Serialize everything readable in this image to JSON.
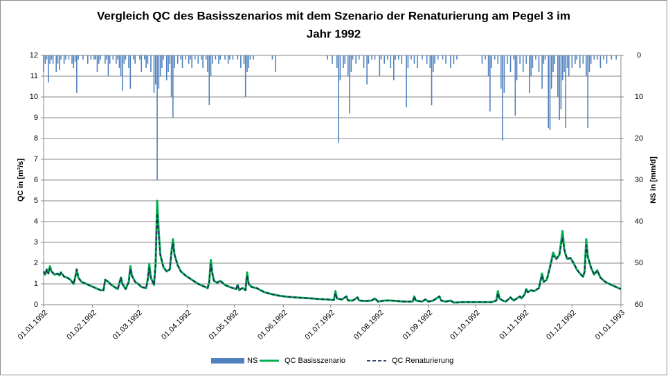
{
  "chart_data": {
    "type": "line",
    "title": [
      "Vergleich QC des Basisszenarios  mit dem Szenario der Renaturierung am Pegel 3 im",
      "Jahr 1992"
    ],
    "y_label": "QC in  [m³/s]",
    "y2_label": "NS in  [mm/d]",
    "xlim": [
      0,
      366
    ],
    "xticks": [
      {
        "value": 0,
        "label": "01.01.1992"
      },
      {
        "value": 31,
        "label": "01.02.1992"
      },
      {
        "value": 60,
        "label": "01.03.1992"
      },
      {
        "value": 91,
        "label": "01.04.1992"
      },
      {
        "value": 121,
        "label": "01.05.1992"
      },
      {
        "value": 152,
        "label": "01.06.1992"
      },
      {
        "value": 182,
        "label": "01.07.1992"
      },
      {
        "value": 213,
        "label": "01.08.1992"
      },
      {
        "value": 244,
        "label": "01.09.1992"
      },
      {
        "value": 274,
        "label": "01.10.1992"
      },
      {
        "value": 305,
        "label": "01.11.1992"
      },
      {
        "value": 335,
        "label": "01.12.1992"
      },
      {
        "value": 366,
        "label": "01.01.1993"
      }
    ],
    "ylim": [
      0,
      12
    ],
    "yticks": [
      0,
      1,
      2,
      3,
      4,
      5,
      6,
      7,
      8,
      9,
      10,
      11,
      12
    ],
    "y2lim": [
      60,
      0
    ],
    "y2ticks": [
      0,
      10,
      20,
      30,
      40,
      50,
      60
    ],
    "grid": true,
    "legend": "bottom",
    "x": [
      0,
      1,
      2,
      3,
      4,
      5,
      7,
      9,
      10,
      11,
      13,
      15,
      17,
      18,
      19,
      20,
      21,
      22,
      24,
      27,
      30,
      33,
      36,
      38,
      39,
      41,
      43,
      45,
      47,
      49,
      50,
      52,
      54,
      55,
      56,
      58,
      60,
      62,
      65,
      66,
      67,
      68,
      70,
      71,
      72,
      73,
      74,
      76,
      78,
      80,
      81,
      82,
      83,
      85,
      87,
      90,
      93,
      96,
      98,
      101,
      104,
      105,
      106,
      107,
      108,
      110,
      112,
      115,
      118,
      120,
      122,
      123,
      124,
      126,
      128,
      129,
      130,
      132,
      135,
      140,
      145,
      150,
      155,
      160,
      165,
      170,
      175,
      180,
      184,
      185,
      186,
      189,
      192,
      193,
      196,
      199,
      200,
      204,
      208,
      210,
      212,
      216,
      220,
      224,
      228,
      234,
      235,
      236,
      240,
      242,
      244,
      247,
      250,
      251,
      252,
      255,
      258,
      260,
      266,
      275,
      284,
      287,
      288,
      289,
      291,
      293,
      296,
      298,
      300,
      302,
      303,
      305,
      306,
      307,
      309,
      311,
      314,
      316,
      317,
      319,
      321,
      323,
      325,
      327,
      329,
      330,
      331,
      332,
      334,
      336,
      338,
      340,
      342,
      343,
      344,
      345,
      347,
      349,
      351,
      353,
      356,
      360,
      366
    ],
    "series": [
      {
        "name": "NS",
        "type": "bar",
        "axis": "y2",
        "color": "#4f81bd",
        "x": [
          0,
          1,
          2,
          3,
          4,
          5,
          6,
          8,
          9,
          10,
          11,
          13,
          14,
          16,
          18,
          19,
          20,
          21,
          22,
          25,
          28,
          30,
          32,
          33,
          34,
          35,
          36,
          39,
          40,
          41,
          42,
          44,
          46,
          47,
          48,
          49,
          50,
          51,
          52,
          54,
          55,
          57,
          58,
          61,
          62,
          64,
          65,
          66,
          68,
          70,
          71,
          72,
          73,
          74,
          75,
          76,
          78,
          79,
          80,
          81,
          82,
          83,
          85,
          87,
          88,
          90,
          92,
          93,
          94,
          96,
          98,
          100,
          101,
          103,
          104,
          105,
          106,
          107,
          109,
          111,
          112,
          115,
          117,
          118,
          120,
          123,
          125,
          127,
          128,
          129,
          130,
          131,
          133,
          145,
          147,
          180,
          183,
          186,
          187,
          188,
          190,
          191,
          193,
          194,
          195,
          196,
          198,
          200,
          203,
          205,
          206,
          208,
          210,
          213,
          214,
          216,
          218,
          220,
          222,
          223,
          225,
          227,
          230,
          231,
          233,
          235,
          237,
          240,
          243,
          245,
          246,
          247,
          248,
          250,
          253,
          255,
          258,
          260,
          262,
          278,
          280,
          282,
          283,
          284,
          286,
          288,
          290,
          291,
          292,
          294,
          296,
          298,
          299,
          300,
          302,
          304,
          306,
          308,
          309,
          310,
          312,
          314,
          316,
          317,
          318,
          320,
          321,
          322,
          323,
          324,
          326,
          327,
          328,
          329,
          330,
          331,
          332,
          333,
          335,
          337,
          338,
          340,
          342,
          344,
          345,
          346,
          347,
          349,
          351,
          353,
          355,
          357,
          360,
          363
        ],
        "values": [
          4,
          2,
          1,
          6.5,
          2,
          1,
          2,
          4,
          2,
          3.5,
          1,
          2,
          1,
          1,
          2,
          3,
          1.5,
          9,
          1,
          1,
          2,
          1,
          1,
          1,
          4,
          2,
          1,
          2,
          1,
          5,
          2,
          1,
          2,
          1,
          3,
          5,
          8.5,
          2,
          1,
          3,
          8,
          1,
          2,
          1,
          4,
          1,
          3,
          2,
          4,
          9,
          7,
          30,
          8,
          5,
          3,
          1,
          6,
          4,
          2,
          10,
          15,
          3,
          2,
          1,
          3,
          1,
          2,
          1,
          3,
          1,
          2,
          1,
          3,
          1,
          4,
          12,
          5,
          2,
          1,
          2,
          1,
          1,
          2,
          1,
          1,
          1,
          3,
          2,
          10,
          4,
          3,
          1,
          1,
          1,
          4,
          1,
          2,
          3,
          21,
          6,
          3,
          2,
          5,
          14,
          4,
          1,
          2,
          1,
          3,
          7,
          2,
          1,
          1,
          5,
          1,
          2,
          1,
          3,
          6,
          1,
          1,
          2,
          12.5,
          3,
          1,
          2,
          3,
          1,
          2,
          3,
          12,
          4,
          2,
          1,
          1,
          2,
          3,
          2,
          1,
          2,
          1,
          5,
          13.5,
          3,
          1,
          2,
          8,
          20.5,
          9,
          2,
          4,
          1,
          14.5,
          6,
          2,
          4,
          2,
          9,
          5,
          3,
          1,
          4,
          8,
          2,
          1,
          17.5,
          18,
          8,
          4,
          2,
          10,
          15.5,
          13,
          6,
          4,
          17.5,
          3,
          5,
          3,
          2,
          1,
          3,
          2,
          5,
          17.5,
          4,
          2,
          1,
          1,
          3,
          1,
          2,
          1,
          1
        ]
      },
      {
        "name": "QC Basisszenario",
        "color": "#00b050",
        "values": [
          1.6,
          1.45,
          1.7,
          1.5,
          1.85,
          1.6,
          1.45,
          1.5,
          1.4,
          1.55,
          1.35,
          1.3,
          1.2,
          1.1,
          1.0,
          1.3,
          1.7,
          1.3,
          1.1,
          1.0,
          0.9,
          0.8,
          0.7,
          0.7,
          1.2,
          1.1,
          0.95,
          0.85,
          0.75,
          1.3,
          1.0,
          0.75,
          1.1,
          1.85,
          1.4,
          1.1,
          1.0,
          0.85,
          0.8,
          1.2,
          1.95,
          1.3,
          0.95,
          2.0,
          5.0,
          3.5,
          2.4,
          1.8,
          1.6,
          1.7,
          2.5,
          3.15,
          2.4,
          1.9,
          1.6,
          1.4,
          1.25,
          1.1,
          1.0,
          0.9,
          0.8,
          1.1,
          2.15,
          1.5,
          1.15,
          1.05,
          1.15,
          0.95,
          0.85,
          0.8,
          0.75,
          0.95,
          0.7,
          0.8,
          0.7,
          1.55,
          1.0,
          0.85,
          0.8,
          0.6,
          0.5,
          0.42,
          0.38,
          0.35,
          0.32,
          0.3,
          0.27,
          0.25,
          0.22,
          0.65,
          0.3,
          0.25,
          0.4,
          0.2,
          0.2,
          0.35,
          0.2,
          0.18,
          0.2,
          0.3,
          0.15,
          0.2,
          0.2,
          0.18,
          0.15,
          0.15,
          0.4,
          0.2,
          0.15,
          0.25,
          0.15,
          0.2,
          0.35,
          0.4,
          0.2,
          0.15,
          0.2,
          0.1,
          0.12,
          0.12,
          0.12,
          0.2,
          0.65,
          0.3,
          0.2,
          0.15,
          0.35,
          0.2,
          0.3,
          0.4,
          0.3,
          0.5,
          0.75,
          0.6,
          0.7,
          0.65,
          0.8,
          1.5,
          1.1,
          1.2,
          1.8,
          2.5,
          2.2,
          2.4,
          3.55,
          2.7,
          2.4,
          2.2,
          2.25,
          2.0,
          1.7,
          1.5,
          1.35,
          1.6,
          3.15,
          2.3,
          1.8,
          1.45,
          1.65,
          1.3,
          1.1,
          0.95,
          0.75
        ]
      },
      {
        "name": "QC Renaturierung",
        "color": "#1f2a5c",
        "dashed": true,
        "values": [
          1.6,
          1.45,
          1.7,
          1.5,
          1.75,
          1.6,
          1.45,
          1.5,
          1.4,
          1.55,
          1.35,
          1.3,
          1.2,
          1.1,
          1.0,
          1.3,
          1.7,
          1.3,
          1.1,
          1.0,
          0.9,
          0.8,
          0.7,
          0.7,
          1.2,
          1.1,
          0.95,
          0.85,
          0.75,
          1.3,
          1.0,
          0.75,
          1.1,
          1.7,
          1.4,
          1.1,
          1.0,
          0.85,
          0.8,
          1.2,
          1.8,
          1.3,
          0.95,
          1.9,
          4.4,
          3.3,
          2.4,
          1.8,
          1.6,
          1.7,
          2.5,
          2.95,
          2.4,
          1.9,
          1.6,
          1.4,
          1.25,
          1.1,
          1.0,
          0.9,
          0.8,
          1.1,
          1.95,
          1.5,
          1.15,
          1.05,
          1.15,
          0.95,
          0.85,
          0.8,
          0.75,
          0.95,
          0.7,
          0.8,
          0.7,
          1.4,
          1.0,
          0.85,
          0.8,
          0.6,
          0.5,
          0.42,
          0.38,
          0.35,
          0.32,
          0.3,
          0.27,
          0.25,
          0.22,
          0.55,
          0.3,
          0.25,
          0.4,
          0.2,
          0.2,
          0.35,
          0.2,
          0.18,
          0.2,
          0.3,
          0.15,
          0.2,
          0.2,
          0.18,
          0.15,
          0.15,
          0.4,
          0.2,
          0.15,
          0.25,
          0.15,
          0.2,
          0.35,
          0.4,
          0.2,
          0.15,
          0.2,
          0.1,
          0.12,
          0.12,
          0.12,
          0.2,
          0.55,
          0.3,
          0.2,
          0.15,
          0.35,
          0.2,
          0.3,
          0.4,
          0.3,
          0.5,
          0.75,
          0.6,
          0.7,
          0.65,
          0.8,
          1.4,
          1.1,
          1.2,
          1.8,
          2.35,
          2.2,
          2.4,
          3.2,
          2.7,
          2.4,
          2.2,
          2.25,
          2.0,
          1.7,
          1.5,
          1.35,
          1.6,
          2.85,
          2.3,
          1.8,
          1.45,
          1.65,
          1.3,
          1.1,
          0.95,
          0.75
        ]
      }
    ]
  }
}
